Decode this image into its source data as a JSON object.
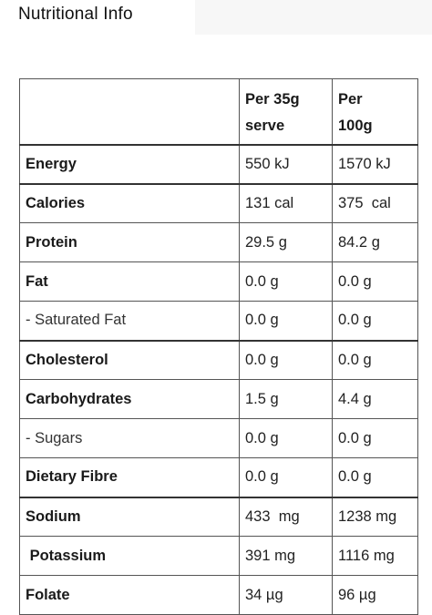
{
  "page": {
    "title": "Nutritional Info"
  },
  "table": {
    "headers": [
      "",
      "Per 35g\nserve",
      "Per\n100g"
    ],
    "rows": [
      {
        "label": "Energy",
        "per_serve": "550 kJ",
        "per_100g": "1570 kJ",
        "bold": true
      },
      {
        "label": "Calories",
        "per_serve": "131 cal",
        "per_100g": "375  cal",
        "bold": true
      },
      {
        "label": "Protein",
        "per_serve": "29.5 g",
        "per_100g": "84.2 g",
        "bold": true
      },
      {
        "label": "Fat",
        "per_serve": "0.0 g",
        "per_100g": "0.0 g",
        "bold": true
      },
      {
        "label": "- Saturated Fat",
        "per_serve": "0.0 g",
        "per_100g": "0.0 g",
        "bold": false
      },
      {
        "label": "Cholesterol",
        "per_serve": "0.0 g",
        "per_100g": "0.0 g",
        "bold": true
      },
      {
        "label": "Carbohydrates",
        "per_serve": "1.5 g",
        "per_100g": "4.4 g",
        "bold": true
      },
      {
        "label": "- Sugars",
        "per_serve": "0.0 g",
        "per_100g": "0.0 g",
        "bold": false
      },
      {
        "label": "Dietary Fibre",
        "per_serve": "0.0 g",
        "per_100g": "0.0 g",
        "bold": true
      },
      {
        "label": "Sodium",
        "per_serve": "433  mg",
        "per_100g": "1238 mg",
        "bold": true
      },
      {
        "label": " Potassium",
        "per_serve": "391 mg",
        "per_100g": "1116 mg",
        "bold": true
      },
      {
        "label": "Folate",
        "per_serve": "34 µg",
        "per_100g": "96 µg",
        "bold": true
      }
    ]
  }
}
